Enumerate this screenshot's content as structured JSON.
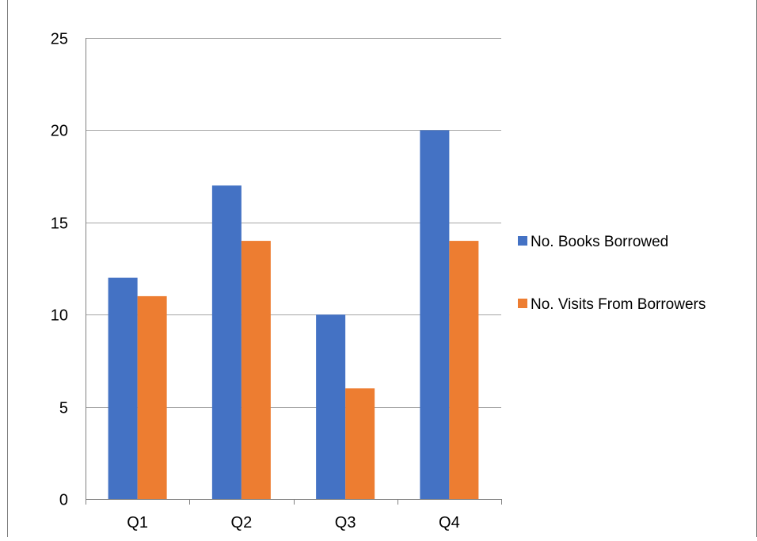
{
  "chart_data": {
    "type": "bar",
    "title": "",
    "xlabel": "",
    "ylabel": "",
    "categories": [
      "Q1",
      "Q2",
      "Q3",
      "Q4"
    ],
    "series": [
      {
        "name": "No. Books Borrowed",
        "values": [
          12,
          17,
          10,
          20
        ],
        "color": "#4472C4"
      },
      {
        "name": "No. Visits From Borrowers",
        "values": [
          11,
          14,
          6,
          14
        ],
        "color": "#ED7D31"
      }
    ],
    "ylim": [
      0,
      25
    ],
    "yticks": [
      0,
      5,
      10,
      15,
      20,
      25
    ],
    "grid": true,
    "legend_position": "right",
    "colors": {
      "gridline": "#A6A6A6",
      "axis": "#808080",
      "border": "#7F7F7F"
    }
  }
}
